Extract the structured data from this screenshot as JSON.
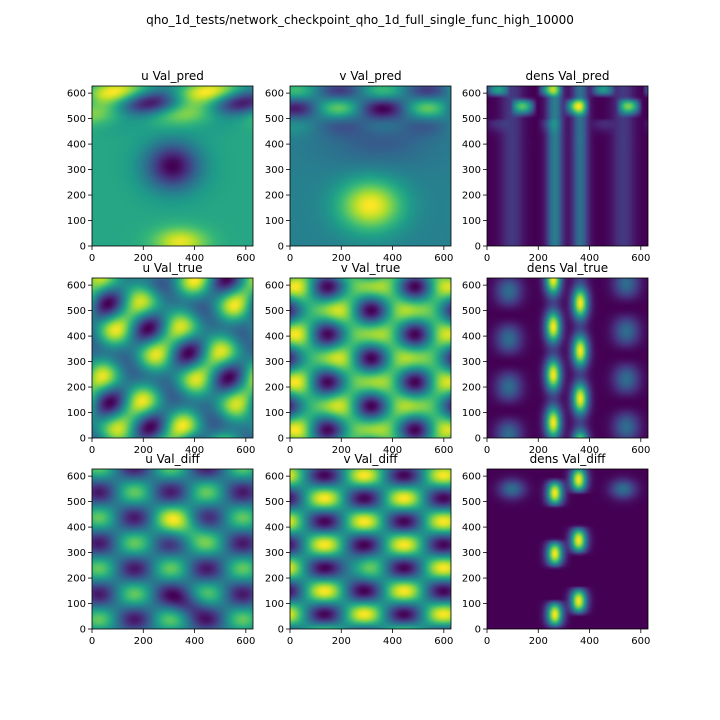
{
  "figure": {
    "suptitle": "qho_1d_tests/network_checkpoint_qho_1d_full_single_func_high_10000"
  },
  "chart_data": [
    {
      "type": "heatmap",
      "title": "u Val_pred",
      "x_ticks": [
        "0",
        "200",
        "400",
        "600"
      ],
      "y_ticks": [
        "0",
        "100",
        "200",
        "300",
        "400",
        "500",
        "600"
      ],
      "xlim": [
        0,
        628
      ],
      "ylim": [
        628,
        0
      ],
      "colormap": "viridis",
      "pattern": "u_pred"
    },
    {
      "type": "heatmap",
      "title": "v Val_pred",
      "x_ticks": [
        "0",
        "200",
        "400",
        "600"
      ],
      "y_ticks": [
        "0",
        "100",
        "200",
        "300",
        "400",
        "500",
        "600"
      ],
      "xlim": [
        0,
        628
      ],
      "ylim": [
        628,
        0
      ],
      "colormap": "viridis",
      "pattern": "v_pred"
    },
    {
      "type": "heatmap",
      "title": "dens Val_pred",
      "x_ticks": [
        "0",
        "200",
        "400",
        "600"
      ],
      "y_ticks": [
        "0",
        "100",
        "200",
        "300",
        "400",
        "500",
        "600"
      ],
      "xlim": [
        0,
        628
      ],
      "ylim": [
        628,
        0
      ],
      "colormap": "viridis",
      "pattern": "dens_pred"
    },
    {
      "type": "heatmap",
      "title": "u Val_true",
      "x_ticks": [
        "0",
        "200",
        "400",
        "600"
      ],
      "y_ticks": [
        "0",
        "100",
        "200",
        "300",
        "400",
        "500",
        "600"
      ],
      "xlim": [
        0,
        628
      ],
      "ylim": [
        628,
        0
      ],
      "colormap": "viridis",
      "pattern": "u_true"
    },
    {
      "type": "heatmap",
      "title": "v Val_true",
      "x_ticks": [
        "0",
        "200",
        "400",
        "600"
      ],
      "y_ticks": [
        "0",
        "100",
        "200",
        "300",
        "400",
        "500",
        "600"
      ],
      "xlim": [
        0,
        628
      ],
      "ylim": [
        628,
        0
      ],
      "colormap": "viridis",
      "pattern": "v_true"
    },
    {
      "type": "heatmap",
      "title": "dens Val_true",
      "x_ticks": [
        "0",
        "200",
        "400",
        "600"
      ],
      "y_ticks": [
        "0",
        "100",
        "200",
        "300",
        "400",
        "500",
        "600"
      ],
      "xlim": [
        0,
        628
      ],
      "ylim": [
        628,
        0
      ],
      "colormap": "viridis",
      "pattern": "dens_true"
    },
    {
      "type": "heatmap",
      "title": "u Val_diff",
      "x_ticks": [
        "0",
        "200",
        "400",
        "600"
      ],
      "y_ticks": [
        "0",
        "100",
        "200",
        "300",
        "400",
        "500",
        "600"
      ],
      "xlim": [
        0,
        628
      ],
      "ylim": [
        628,
        0
      ],
      "colormap": "viridis",
      "pattern": "u_diff"
    },
    {
      "type": "heatmap",
      "title": "v Val_diff",
      "x_ticks": [
        "0",
        "200",
        "400",
        "600"
      ],
      "y_ticks": [
        "0",
        "100",
        "200",
        "300",
        "400",
        "500",
        "600"
      ],
      "xlim": [
        0,
        628
      ],
      "ylim": [
        628,
        0
      ],
      "colormap": "viridis",
      "pattern": "v_diff"
    },
    {
      "type": "heatmap",
      "title": "dens Val_diff",
      "x_ticks": [
        "0",
        "200",
        "400",
        "600"
      ],
      "y_ticks": [
        "0",
        "100",
        "200",
        "300",
        "400",
        "500",
        "600"
      ],
      "xlim": [
        0,
        628
      ],
      "ylim": [
        628,
        0
      ],
      "colormap": "viridis",
      "pattern": "dens_diff"
    }
  ]
}
